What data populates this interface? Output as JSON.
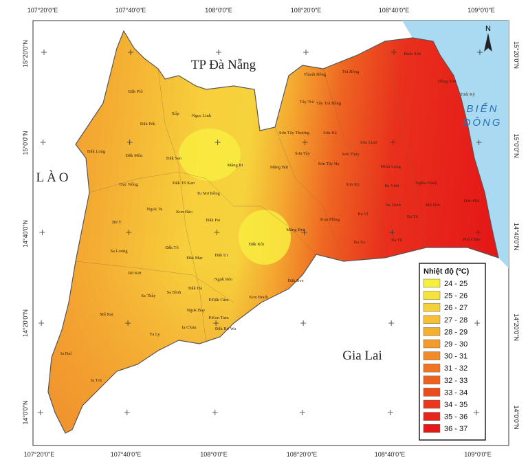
{
  "axes": {
    "top": [
      "107°20'0\"E",
      "107°40'0\"E",
      "108°0'0\"E",
      "108°20'0\"E",
      "108°40'0\"E",
      "109°0'0\"E"
    ],
    "bottom": [
      "107°20'0\"E",
      "107°40'0\"E",
      "108°0'0\"E",
      "108°20'0\"E",
      "108°40'0\"E",
      "109°0'0\"E"
    ],
    "left": [
      "15°20'0\"N",
      "15°0'0\"N",
      "14°40'0\"N",
      "14°20'0\"N",
      "14°0'0\"N"
    ],
    "right": [
      "15°20'0\"N",
      "15°0'0\"N",
      "14°40'0\"N",
      "14°20'0\"N",
      "14°0'0\"N"
    ]
  },
  "regions": {
    "north": "TP Đà Nẵng",
    "west": "LÀO",
    "sea_1": "BIỂN",
    "sea_2": "ĐÔNG",
    "south": "Gia Lai",
    "north_arrow": "N"
  },
  "places": [
    "Đắk Plô",
    "Xốp",
    "Ngọc Linh",
    "Đắk Pék",
    "Đắk Long",
    "Đắk Môn",
    "Đắk Sao",
    "Măng Ri",
    "Đắk Tô Kan",
    "Dục Nông",
    "Tu Mơ Rông",
    "Ngok Tu",
    "Kon Đào",
    "Bờ Y",
    "Đắk Psi",
    "Đắk Tô",
    "Sa Loong",
    "Đắk Ui",
    "Đắk Mar",
    "Rờ Kơi",
    "Ngọk Réo",
    "Đắk Hà",
    "Sa Bình",
    "Sa Thầy",
    "P.Đắk Cấm",
    "Kon Braih",
    "Đắk Rve",
    "Mô Rai",
    "Ngok Bay",
    "P.Kon Tum",
    "Ia Chim",
    "Đắk Rơ Wa",
    "Ya Ly",
    "Ia Đal",
    "Ia Tơi",
    "Đắk Kôi",
    "Măng Đen",
    "Măng Bút",
    "Kon Plông",
    "Sơn Tây Thượng",
    "Sơn Tây",
    "Sơn Tây Hạ",
    "Sơn Hà",
    "Sơn Thủy",
    "Sơn Kỳ",
    "Ba Vì",
    "Ba Xa",
    "Ba Tô",
    "Tây Trà",
    "Tây Trà Bồng",
    "Thanh Bồng",
    "Trà Bồng",
    "Sơn Linh",
    "Minh Long",
    "Ba Tơ",
    "Ba Dinh",
    "Ba Vinh",
    "Tịnh Kỳ",
    "Đông Sơn",
    "Bình Sơn",
    "Mộ Đức",
    "Đức Phổ",
    "Phổ Châu",
    "Nghĩa Hành"
  ],
  "legend": {
    "title": "Nhiệt độ (ºC)",
    "items": [
      {
        "label": "24 - 25",
        "color": "#f7f03a"
      },
      {
        "label": "25 - 26",
        "color": "#f7e23a"
      },
      {
        "label": "26 - 27",
        "color": "#f5d03a"
      },
      {
        "label": "27 - 28",
        "color": "#f5c035"
      },
      {
        "label": "28 - 29",
        "color": "#f4ae30"
      },
      {
        "label": "29 - 30",
        "color": "#f39c2c"
      },
      {
        "label": "30 - 31",
        "color": "#f18a28"
      },
      {
        "label": "31 - 32",
        "color": "#ef7524"
      },
      {
        "label": "32 - 33",
        "color": "#ed6020"
      },
      {
        "label": "33 - 34",
        "color": "#eb4c1e"
      },
      {
        "label": "34 - 35",
        "color": "#e9381c"
      },
      {
        "label": "35 - 36",
        "color": "#e7261a"
      },
      {
        "label": "36 - 37",
        "color": "#e51818"
      }
    ]
  }
}
